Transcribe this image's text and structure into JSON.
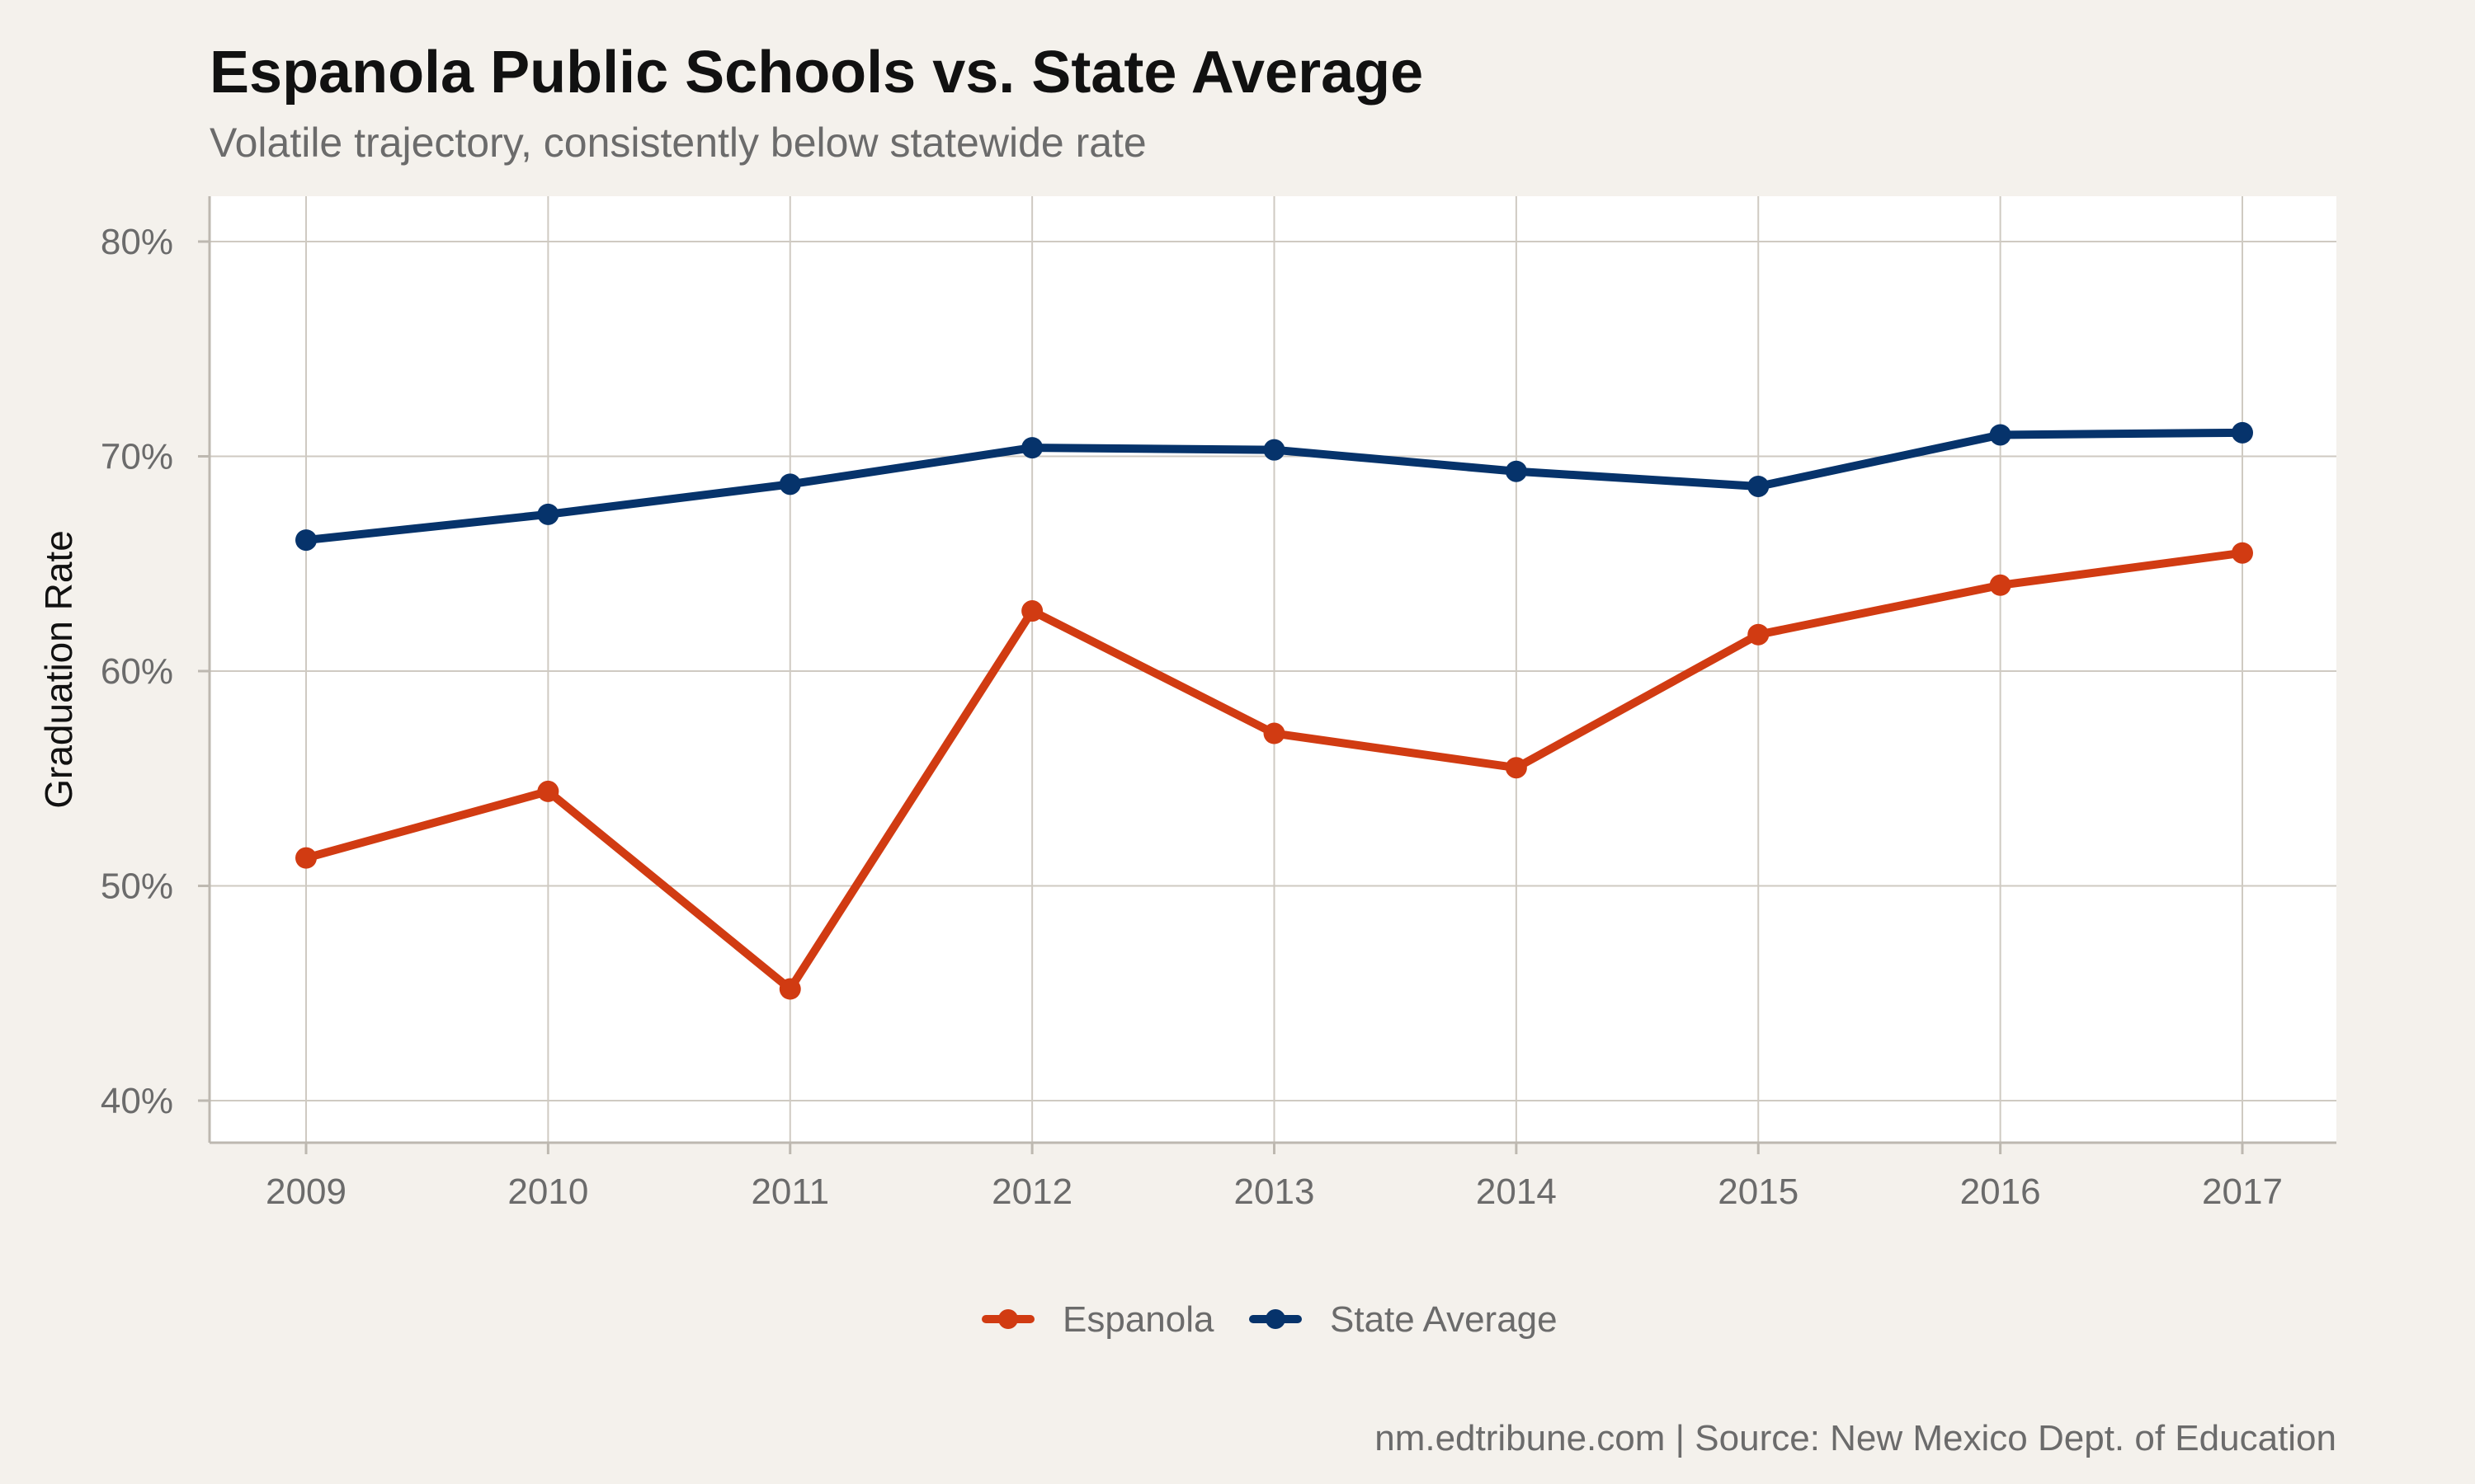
{
  "chart_data": {
    "type": "line",
    "title": "Espanola Public Schools vs. State Average",
    "subtitle": "Volatile trajectory, consistently below statewide rate",
    "xlabel": "",
    "ylabel": "Graduation Rate",
    "x": [
      2009,
      2010,
      2011,
      2012,
      2013,
      2014,
      2015,
      2016,
      2017
    ],
    "x_tick_labels": [
      "2009",
      "2010",
      "2011",
      "2012",
      "2013",
      "2014",
      "2015",
      "2016",
      "2017"
    ],
    "ylim": [
      38,
      80
    ],
    "y_ticks": [
      40,
      50,
      60,
      70,
      80
    ],
    "y_tick_labels": [
      "40%",
      "50%",
      "60%",
      "70%",
      "80%"
    ],
    "grid": true,
    "legend_position": "bottom",
    "series": [
      {
        "name": "Espanola",
        "color": "#d13b12",
        "values": [
          51.3,
          54.4,
          45.2,
          62.8,
          57.1,
          55.5,
          61.7,
          64.0,
          65.5
        ]
      },
      {
        "name": "State Average",
        "color": "#06336b",
        "values": [
          66.1,
          67.3,
          68.7,
          70.4,
          70.3,
          69.3,
          68.6,
          71.0,
          71.1
        ]
      }
    ],
    "caption": "nm.edtribune.com | Source: New Mexico Dept. of Education"
  }
}
